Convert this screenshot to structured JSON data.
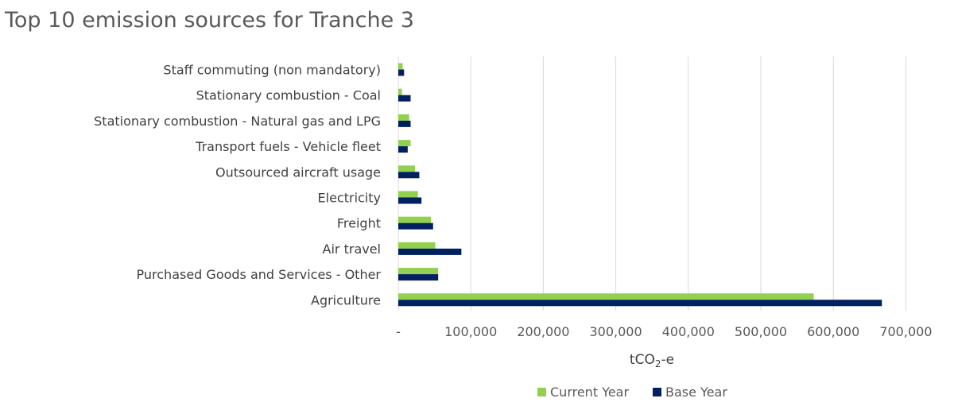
{
  "chart_data": {
    "type": "bar",
    "orientation": "horizontal",
    "title": "Top 10 emission sources for Tranche 3",
    "xlabel": "tCO2-e",
    "xlabel_parts": {
      "pre": "tCO",
      "sub": "2",
      "post": "-e"
    },
    "xlim": [
      0,
      700000
    ],
    "xticks": [
      "-",
      "100,000",
      "200,000",
      "300,000",
      "400,000",
      "500,000",
      "600,000",
      "700,000"
    ],
    "categories": [
      "Staff commuting (non mandatory)",
      "Stationary combustion - Coal",
      "Stationary combustion - Natural gas and LPG",
      "Transport fuels - Vehicle fleet",
      "Outsourced aircraft usage",
      "Electricity",
      "Freight",
      "Air travel",
      "Purchased Goods and Services - Other",
      "Agriculture"
    ],
    "series": [
      {
        "name": "Current Year",
        "color": "#92d050",
        "values": [
          6000,
          5000,
          15000,
          17000,
          23000,
          27000,
          45000,
          51000,
          55000,
          573000
        ]
      },
      {
        "name": "Base Year",
        "color": "#002060",
        "values": [
          8000,
          17000,
          17000,
          13000,
          29000,
          32000,
          48000,
          87000,
          55000,
          667000
        ]
      }
    ],
    "grid": true,
    "legend": "bottom"
  }
}
